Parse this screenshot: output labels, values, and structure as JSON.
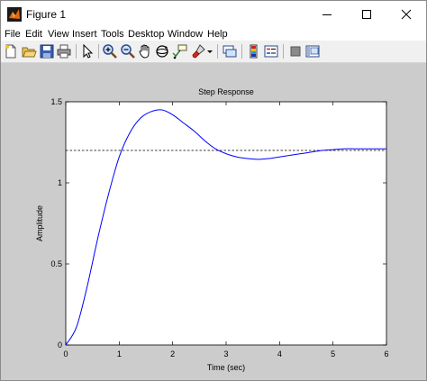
{
  "window": {
    "title": "Figure 1",
    "app_icon": "matlab-icon",
    "controls": [
      "minimize-icon",
      "maximize-icon",
      "close-icon"
    ]
  },
  "menu": {
    "items": [
      "File",
      "Edit",
      "View",
      "Insert",
      "Tools",
      "Desktop",
      "Window",
      "Help"
    ]
  },
  "toolbar": {
    "buttons": [
      "new-figure-icon",
      "open-file-icon",
      "save-icon",
      "print-icon",
      "select-arrow-icon",
      "zoom-in-icon",
      "zoom-out-icon",
      "pan-hand-icon",
      "rotate-3d-icon",
      "data-cursor-icon",
      "brush-icon",
      "link-plot-icon",
      "insert-colorbar-icon",
      "insert-legend-icon",
      "hide-plot-tools-icon",
      "show-plot-tools-icon"
    ]
  },
  "chart_data": {
    "type": "line",
    "title": "Step Response",
    "xlabel": "Time (sec)",
    "ylabel": "Amplitude",
    "xlim": [
      0,
      6
    ],
    "ylim": [
      0,
      1.5
    ],
    "xticks": [
      0,
      1,
      2,
      3,
      4,
      5,
      6
    ],
    "xtick_labels": [
      "0",
      "1",
      "2",
      "3",
      "4",
      "5",
      "6"
    ],
    "yticks": [
      0,
      0.5,
      1,
      1.5
    ],
    "ytick_labels": [
      "0",
      "0.5",
      "1",
      "1.5"
    ],
    "grid": false,
    "series": [
      {
        "color": "#0000ff",
        "x": [
          0,
          0.2,
          0.4,
          0.6,
          0.8,
          1.0,
          1.2,
          1.4,
          1.6,
          1.8,
          2.0,
          2.2,
          2.4,
          2.6,
          2.8,
          3.0,
          3.2,
          3.4,
          3.6,
          3.8,
          4.0,
          4.2,
          4.4,
          4.6,
          4.8,
          5.0,
          5.2,
          5.4,
          5.6,
          5.8,
          6.0
        ],
        "y": [
          0,
          0.11,
          0.36,
          0.66,
          0.93,
          1.16,
          1.31,
          1.4,
          1.44,
          1.45,
          1.42,
          1.37,
          1.32,
          1.26,
          1.21,
          1.18,
          1.16,
          1.15,
          1.145,
          1.15,
          1.16,
          1.17,
          1.18,
          1.19,
          1.2,
          1.205,
          1.21,
          1.21,
          1.21,
          1.21,
          1.21
        ]
      }
    ],
    "reference_line": {
      "y": 1.2,
      "style": "dashed",
      "color": "#000000"
    }
  }
}
